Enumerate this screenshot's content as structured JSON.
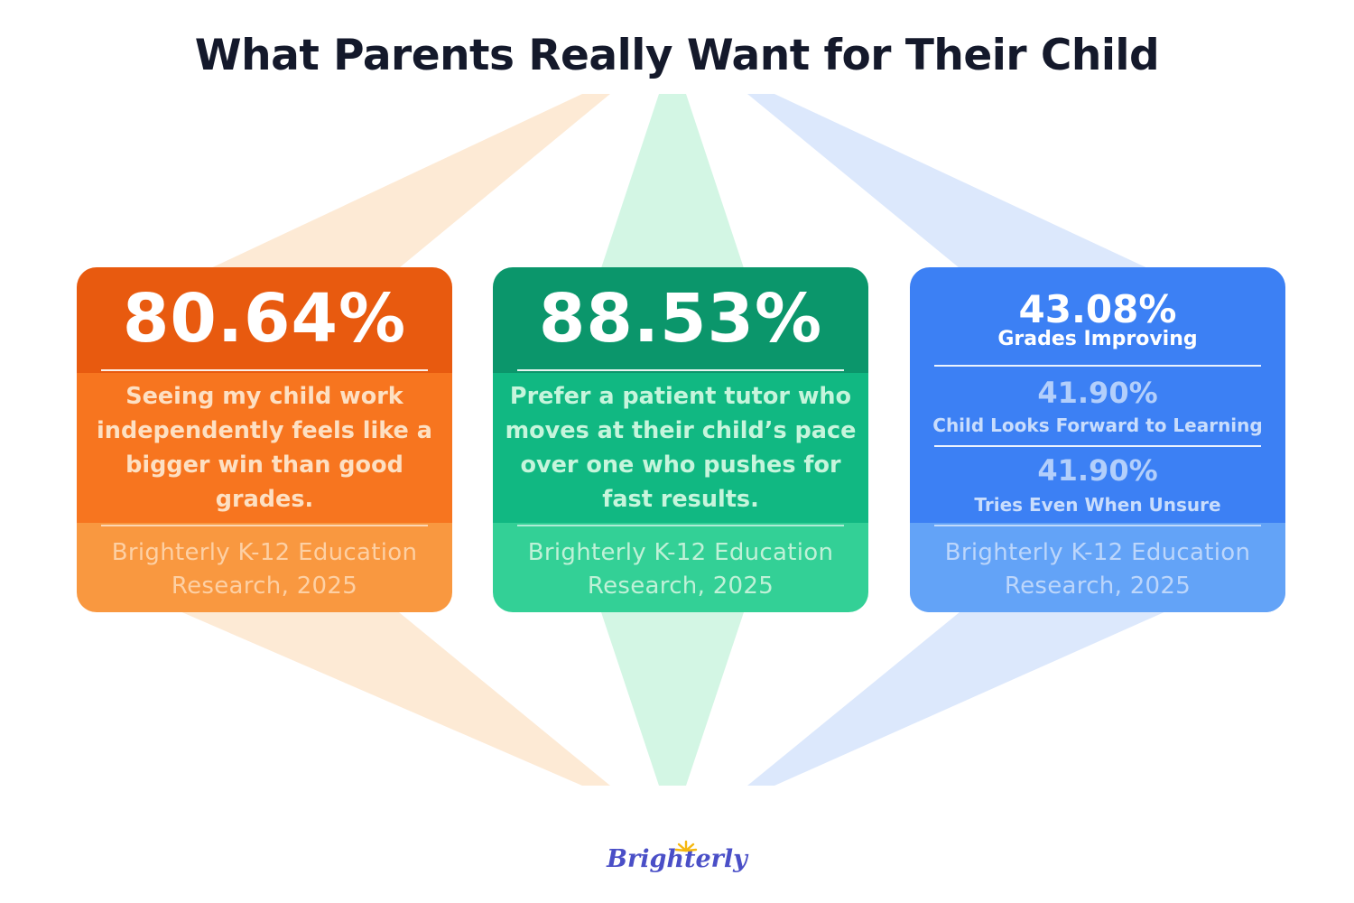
{
  "title": "What Parents Really Want for Their Child",
  "colors": {
    "orange_dark": "#e85a0f",
    "orange": "#f7751f",
    "orange_light": "#f99840",
    "green_dark": "#0b966b",
    "green": "#11b882",
    "green_light": "#33d096",
    "blue_dark": "#3c80f4",
    "blue": "#3c80f4",
    "blue_light": "#63a3f7",
    "title": "#14192b",
    "logo": "#4a4fc7"
  },
  "cards": [
    {
      "percent": "80.64%",
      "statement": "Seeing my child work independently feels like a bigger win than good grades.",
      "source_line1": "Brighterly K-12 Education",
      "source_line2": "Research, 2025"
    },
    {
      "percent": "88.53%",
      "statement": "Prefer a patient tutor who moves at their child’s pace over one who pushes for fast results.",
      "source_line1": "Brighterly K-12 Education",
      "source_line2": "Research, 2025"
    },
    {
      "stats": [
        {
          "percent": "43.08%",
          "label": "Grades Improving"
        },
        {
          "percent": "41.90%",
          "label": "Child Looks Forward to Learning"
        },
        {
          "percent": "41.90%",
          "label": "Tries Even When Unsure"
        }
      ],
      "source_line1": "Brighterly K-12 Education",
      "source_line2": "Research, 2025"
    }
  ],
  "logo": {
    "text": "Brighterly",
    "icon": "sun-icon"
  }
}
